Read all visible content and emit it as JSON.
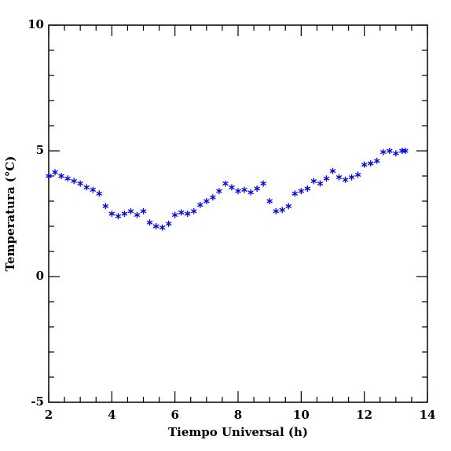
{
  "chart_data": {
    "type": "scatter",
    "xlabel": "Tiempo Universal (h)",
    "ylabel": "Temperatura (°C)",
    "xlim": [
      2,
      14
    ],
    "ylim": [
      -5,
      10
    ],
    "xticks": [
      2,
      4,
      6,
      8,
      10,
      12,
      14
    ],
    "yticks": [
      -5,
      0,
      5,
      10
    ],
    "xticks_minor": [
      2.5,
      3,
      3.5,
      4.5,
      5,
      5.5,
      6.5,
      7,
      7.5,
      8.5,
      9,
      9.5,
      10.5,
      11,
      11.5,
      12.5,
      13,
      13.5
    ],
    "yticks_minor": [
      -4,
      -3,
      -2,
      -1,
      1,
      2,
      3,
      4,
      6,
      7,
      8,
      9
    ],
    "marker": "asterisk",
    "series": [
      {
        "color": "#0000ff",
        "x": [
          2.0,
          2.2,
          2.4,
          2.6,
          2.8,
          3.0,
          3.2,
          3.4,
          3.6,
          3.8,
          4.0,
          4.2,
          4.4,
          4.6,
          4.8,
          5.0,
          5.2,
          5.4,
          5.6,
          5.8,
          6.0,
          6.2,
          6.4,
          6.6,
          6.8,
          7.0,
          7.2,
          7.4,
          7.6,
          7.8,
          8.0,
          8.2,
          8.4,
          8.6,
          8.8,
          9.0,
          9.2,
          9.4,
          9.6,
          9.8,
          10.0,
          10.2,
          10.4,
          10.6,
          10.8,
          11.0,
          11.2,
          11.4,
          11.6,
          11.8,
          12.0,
          12.2,
          12.4,
          12.6,
          12.8,
          13.0,
          13.2,
          13.3
        ],
        "values": [
          4.0,
          4.15,
          4.0,
          3.9,
          3.8,
          3.7,
          3.55,
          3.45,
          3.3,
          2.8,
          2.5,
          2.4,
          2.5,
          2.6,
          2.45,
          2.6,
          2.15,
          2.0,
          1.95,
          2.1,
          2.45,
          2.55,
          2.5,
          2.6,
          2.85,
          3.0,
          3.15,
          3.4,
          3.7,
          3.55,
          3.4,
          3.45,
          3.35,
          3.5,
          3.7,
          3.0,
          2.6,
          2.65,
          2.8,
          3.3,
          3.4,
          3.5,
          3.8,
          3.7,
          3.9,
          4.2,
          3.95,
          3.85,
          3.95,
          4.05,
          4.45,
          4.5,
          4.6,
          4.95,
          5.0,
          4.9,
          5.0,
          5.0
        ]
      }
    ]
  }
}
